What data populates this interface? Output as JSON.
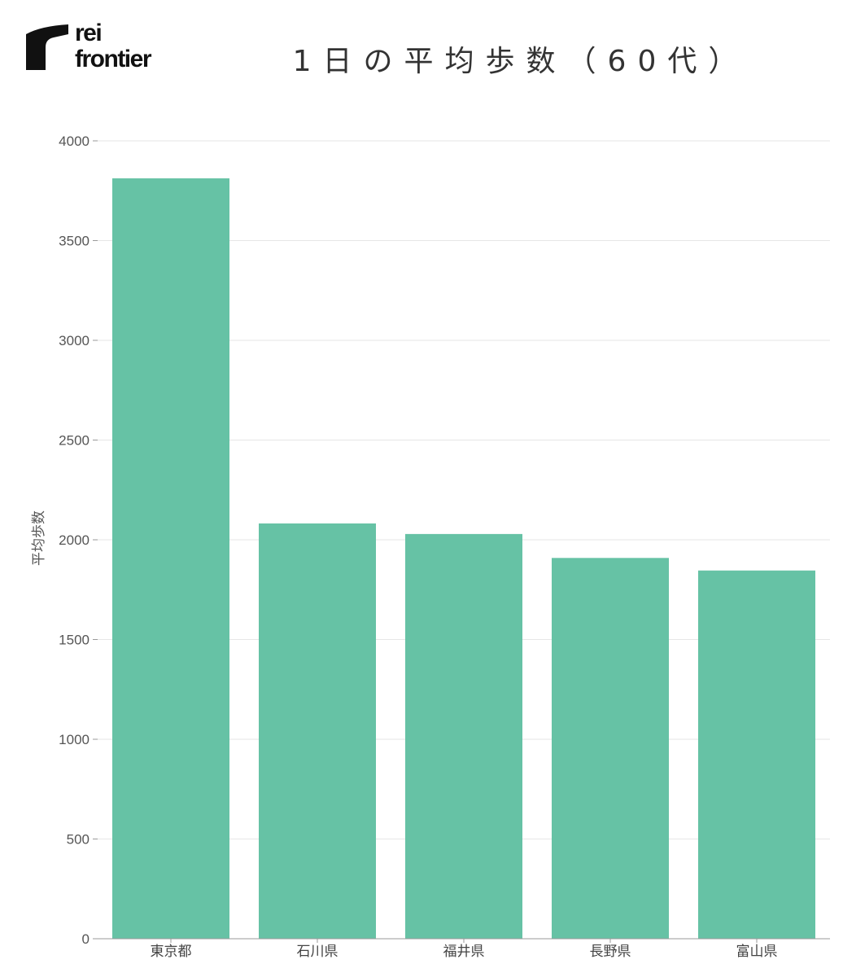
{
  "logo": {
    "line1": "rei",
    "line2": "frontier"
  },
  "colors": {
    "bar": "#66c2a5",
    "grid": "#e6e6e6",
    "axis": "#9a9a9a",
    "logo": "#111111"
  },
  "chart_data": {
    "type": "bar",
    "title": "1日の平均歩数（60代）",
    "xlabel": "",
    "ylabel": "平均歩数",
    "categories": [
      "東京都",
      "石川県",
      "福井県",
      "長野県",
      "富山県"
    ],
    "values": [
      3812,
      2082,
      2029,
      1909,
      1846
    ],
    "ylim": [
      0,
      4000
    ],
    "yticks": [
      0,
      500,
      1000,
      1500,
      2000,
      2500,
      3000,
      3500,
      4000
    ],
    "grid": true,
    "legend": "none"
  }
}
